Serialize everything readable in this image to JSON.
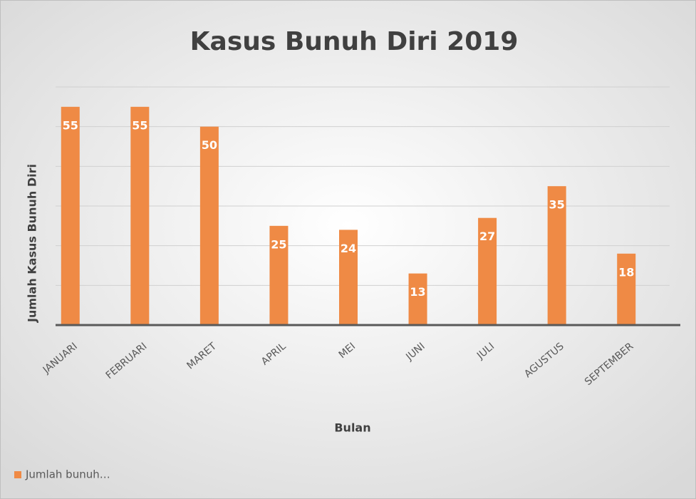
{
  "chart_data": {
    "type": "bar",
    "title": "Kasus Bunuh Diri 2019",
    "x_label": "Bulan",
    "y_label": "Jumlah Kasus Bunuh Diri",
    "categories": [
      "JANUARI",
      "FEBRUARI",
      "MARET",
      "APRIL",
      "MEI",
      "JUNI",
      "JULI",
      "AGUSTUS",
      "SEPTEMBER"
    ],
    "series": [
      {
        "name": "Jumlah bunuh…",
        "color": "#ef8a45",
        "values": [
          55,
          55,
          50,
          25,
          24,
          13,
          27,
          35,
          18
        ]
      }
    ],
    "ylim": [
      0,
      60
    ],
    "yticks": [
      0,
      10,
      20,
      30,
      40,
      50,
      60
    ],
    "grid": true,
    "legend": "bottom-left"
  }
}
